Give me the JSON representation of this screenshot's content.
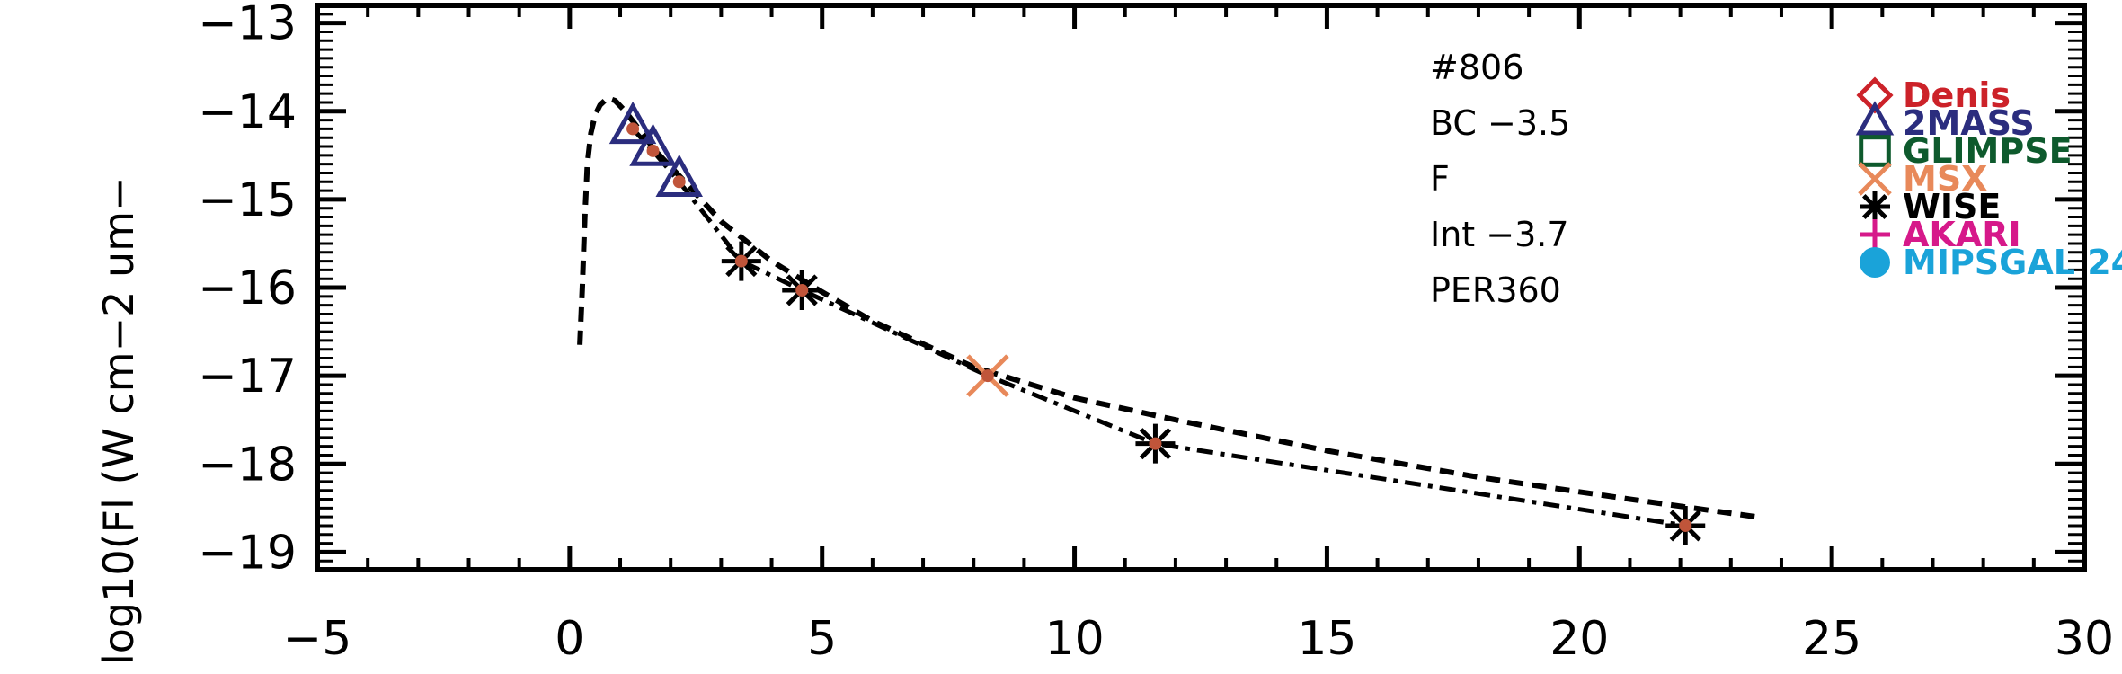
{
  "chart_data": {
    "type": "scatter",
    "ylabel": "log10(Fl (W cm−2 um−",
    "xlim": [
      -5,
      30
    ],
    "ylim": [
      -19.2,
      -12.8
    ],
    "x_ticks": [
      "−5",
      "0",
      "5",
      "10",
      "15",
      "20",
      "25",
      "30"
    ],
    "y_ticks": [
      "−13",
      "−14",
      "−15",
      "−16",
      "−17",
      "−18",
      "−19"
    ],
    "annotations": [
      "#806",
      "BC −3.5",
      "F",
      "Int −3.7",
      "PER360"
    ],
    "legend": [
      {
        "name": "Denis",
        "color": "#cc2229",
        "marker": "diamond"
      },
      {
        "name": "2MASS",
        "color": "#2b2d7e",
        "marker": "triangle"
      },
      {
        "name": "GLIMPSE",
        "color": "#0e5a2d",
        "marker": "square"
      },
      {
        "name": "MSX",
        "color": "#e8895a",
        "marker": "x"
      },
      {
        "name": "WISE",
        "color": "#000000",
        "marker": "asterisk"
      },
      {
        "name": "AKARI",
        "color": "#d6198a",
        "marker": "plus"
      },
      {
        "name": "MIPSGAL 24",
        "color": "#1aa3d9",
        "marker": "circle"
      }
    ],
    "series": [
      {
        "values": [
          [
            1.25,
            -14.2
          ],
          [
            1.65,
            -14.45
          ],
          [
            2.17,
            -14.8
          ]
        ],
        "marker": "triangle",
        "color": "#2b2d7e"
      },
      {
        "values": [
          [
            8.28,
            -17.0
          ]
        ],
        "marker": "x",
        "color": "#e8895a"
      },
      {
        "values": [
          [
            3.4,
            -15.7
          ],
          [
            4.6,
            -16.03
          ],
          [
            11.6,
            -17.77
          ],
          [
            22.1,
            -18.7
          ]
        ],
        "marker": "asterisk",
        "color": "#000000"
      },
      {
        "values": [
          [
            1.25,
            -14.2
          ],
          [
            1.65,
            -14.45
          ],
          [
            2.17,
            -14.8
          ],
          [
            3.4,
            -15.7
          ],
          [
            4.6,
            -16.03
          ],
          [
            8.28,
            -17.0
          ],
          [
            11.6,
            -17.77
          ],
          [
            22.1,
            -18.7
          ]
        ],
        "marker": "dot",
        "color": "#c0553a"
      }
    ],
    "model_dashed": [
      [
        0.2,
        -16.65
      ],
      [
        0.25,
        -16.0
      ],
      [
        0.3,
        -15.2
      ],
      [
        0.35,
        -14.6
      ],
      [
        0.42,
        -14.25
      ],
      [
        0.5,
        -14.05
      ],
      [
        0.6,
        -13.93
      ],
      [
        0.75,
        -13.85
      ],
      [
        0.9,
        -13.88
      ],
      [
        1.1,
        -14.0
      ],
      [
        1.3,
        -14.15
      ],
      [
        1.7,
        -14.45
      ],
      [
        2.2,
        -14.75
      ],
      [
        3.0,
        -15.25
      ],
      [
        4.0,
        -15.7
      ],
      [
        5.0,
        -16.05
      ],
      [
        6.0,
        -16.38
      ],
      [
        8.0,
        -16.9
      ],
      [
        10.0,
        -17.25
      ],
      [
        12.0,
        -17.5
      ],
      [
        15.0,
        -17.85
      ],
      [
        18.0,
        -18.15
      ],
      [
        21.0,
        -18.4
      ],
      [
        23.5,
        -18.6
      ]
    ],
    "model_dashdot": [
      [
        1.25,
        -14.2
      ],
      [
        1.65,
        -14.45
      ],
      [
        2.17,
        -14.8
      ],
      [
        3.4,
        -15.7
      ],
      [
        4.6,
        -16.03
      ],
      [
        8.28,
        -17.0
      ],
      [
        11.6,
        -17.77
      ],
      [
        22.1,
        -18.7
      ]
    ],
    "grid": false
  }
}
